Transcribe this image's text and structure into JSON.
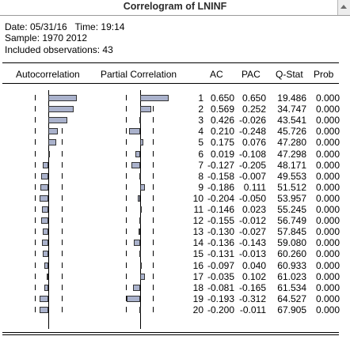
{
  "window": {
    "title": "Correlogram of LNINF"
  },
  "header": {
    "date_line": "Date: 05/31/16   Time: 19:14",
    "sample_line": "Sample: 1970 2012",
    "obs_line": "Included observations: 43"
  },
  "columns": {
    "autocorrelation": "Autocorrelation",
    "partial_correlation": "Partial Correlation",
    "ac": "AC",
    "pac": "PAC",
    "qstat": "Q-Stat",
    "prob": "Prob"
  },
  "rows": [
    {
      "lag": "1",
      "ac": "0.650",
      "pac": "0.650",
      "q": "19.486",
      "prob": "0.000",
      "acv": 0.65,
      "pacv": 0.65
    },
    {
      "lag": "2",
      "ac": "0.569",
      "pac": "0.252",
      "q": "34.747",
      "prob": "0.000",
      "acv": 0.569,
      "pacv": 0.252
    },
    {
      "lag": "3",
      "ac": "0.426",
      "pac": "-0.026",
      "q": "43.541",
      "prob": "0.000",
      "acv": 0.426,
      "pacv": -0.026
    },
    {
      "lag": "4",
      "ac": "0.210",
      "pac": "-0.248",
      "q": "45.726",
      "prob": "0.000",
      "acv": 0.21,
      "pacv": -0.248
    },
    {
      "lag": "5",
      "ac": "0.175",
      "pac": "0.076",
      "q": "47.280",
      "prob": "0.000",
      "acv": 0.175,
      "pacv": 0.076
    },
    {
      "lag": "6",
      "ac": "0.019",
      "pac": "-0.108",
      "q": "47.298",
      "prob": "0.000",
      "acv": 0.019,
      "pacv": -0.108
    },
    {
      "lag": "7",
      "ac": "-0.127",
      "pac": "-0.205",
      "q": "48.171",
      "prob": "0.000",
      "acv": -0.127,
      "pacv": -0.205
    },
    {
      "lag": "8",
      "ac": "-0.158",
      "pac": "-0.007",
      "q": "49.553",
      "prob": "0.000",
      "acv": -0.158,
      "pacv": -0.007
    },
    {
      "lag": "9",
      "ac": "-0.186",
      "pac": "0.111",
      "q": "51.512",
      "prob": "0.000",
      "acv": -0.186,
      "pacv": 0.111
    },
    {
      "lag": "10",
      "ac": "-0.204",
      "pac": "-0.050",
      "q": "53.957",
      "prob": "0.000",
      "acv": -0.204,
      "pacv": -0.05
    },
    {
      "lag": "11",
      "ac": "-0.146",
      "pac": "0.023",
      "q": "55.245",
      "prob": "0.000",
      "acv": -0.146,
      "pacv": 0.023
    },
    {
      "lag": "12",
      "ac": "-0.155",
      "pac": "-0.012",
      "q": "56.749",
      "prob": "0.000",
      "acv": -0.155,
      "pacv": -0.012
    },
    {
      "lag": "13",
      "ac": "-0.130",
      "pac": "-0.027",
      "q": "57.845",
      "prob": "0.000",
      "acv": -0.13,
      "pacv": -0.027
    },
    {
      "lag": "14",
      "ac": "-0.136",
      "pac": "-0.143",
      "q": "59.080",
      "prob": "0.000",
      "acv": -0.136,
      "pacv": -0.143
    },
    {
      "lag": "15",
      "ac": "-0.131",
      "pac": "-0.013",
      "q": "60.260",
      "prob": "0.000",
      "acv": -0.131,
      "pacv": -0.013
    },
    {
      "lag": "16",
      "ac": "-0.097",
      "pac": "0.040",
      "q": "60.933",
      "prob": "0.000",
      "acv": -0.097,
      "pacv": 0.04
    },
    {
      "lag": "17",
      "ac": "-0.035",
      "pac": "0.102",
      "q": "61.023",
      "prob": "0.000",
      "acv": -0.035,
      "pacv": 0.102
    },
    {
      "lag": "18",
      "ac": "-0.081",
      "pac": "-0.165",
      "q": "61.534",
      "prob": "0.000",
      "acv": -0.081,
      "pacv": -0.165
    },
    {
      "lag": "19",
      "ac": "-0.193",
      "pac": "-0.312",
      "q": "64.527",
      "prob": "0.000",
      "acv": -0.193,
      "pacv": -0.312
    },
    {
      "lag": "20",
      "ac": "-0.200",
      "pac": "-0.011",
      "q": "67.905",
      "prob": "0.000",
      "acv": -0.2,
      "pacv": -0.011
    }
  ],
  "colors": {
    "bar_fill": "#aab2cc",
    "bar_border": "#333333"
  }
}
